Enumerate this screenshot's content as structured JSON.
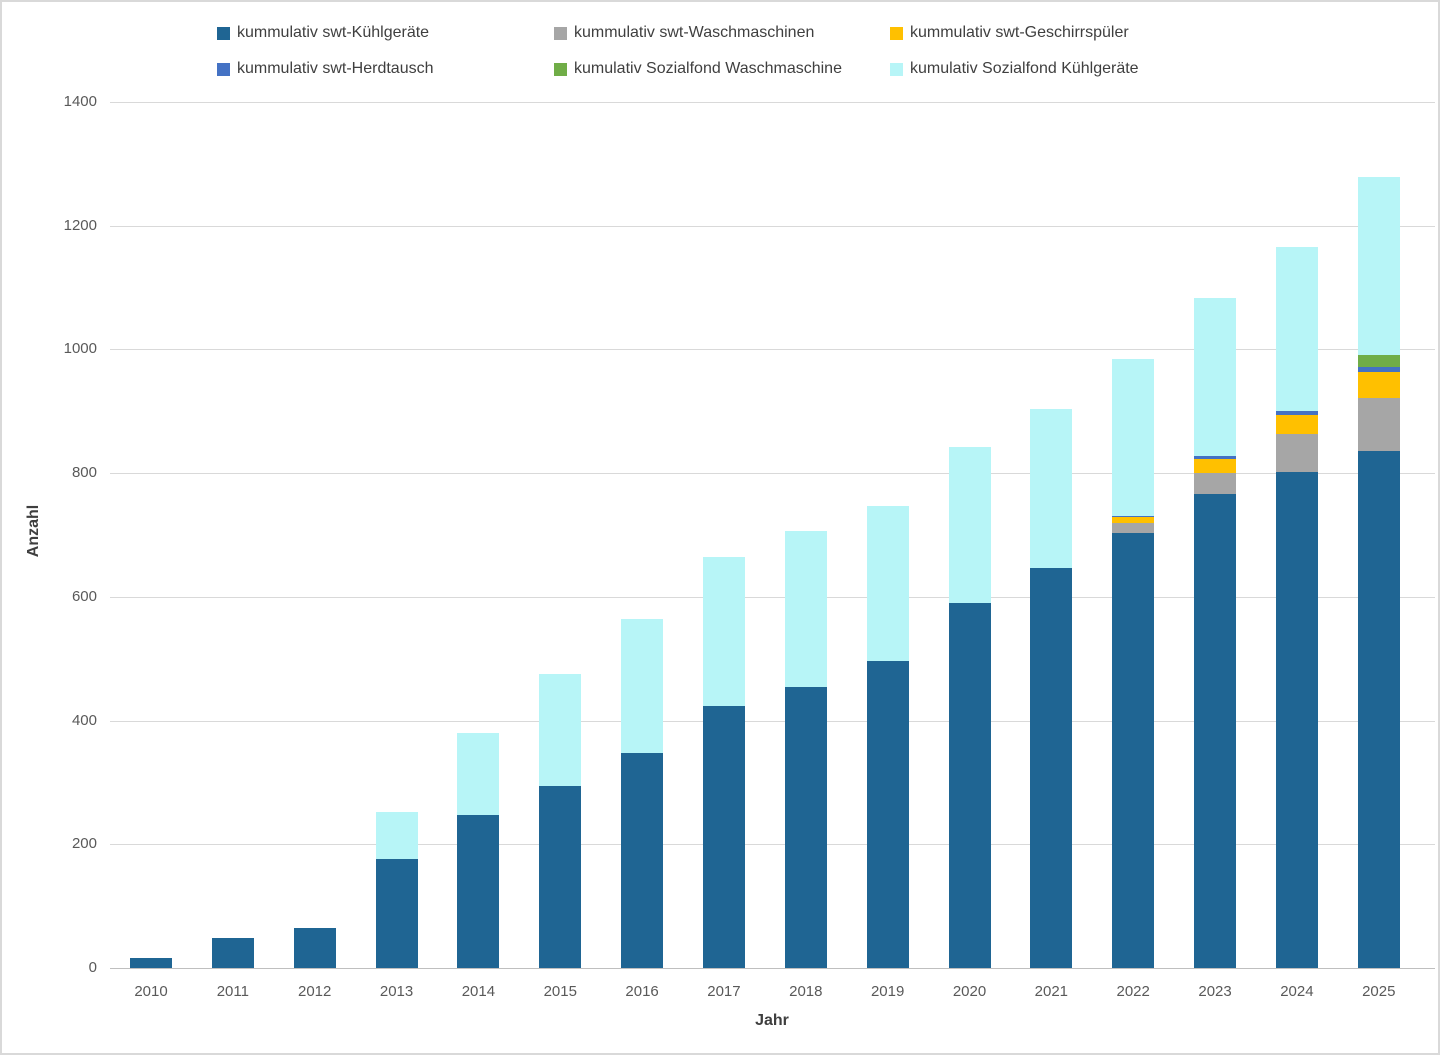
{
  "chart_data": {
    "type": "bar",
    "subtype": "stacked",
    "title": "",
    "xlabel": "Jahr",
    "ylabel": "Anzahl",
    "ylim": [
      0,
      1400
    ],
    "yticks": [
      0,
      200,
      400,
      600,
      800,
      1000,
      1200,
      1400
    ],
    "grid": true,
    "legend_position": "top",
    "categories": [
      "2010",
      "2011",
      "2012",
      "2013",
      "2014",
      "2015",
      "2016",
      "2017",
      "2018",
      "2019",
      "2020",
      "2021",
      "2022",
      "2023",
      "2024",
      "2025"
    ],
    "series": [
      {
        "name": "kummulativ swt-Kühlgeräte",
        "color": "#1F6593",
        "values": [
          16,
          48,
          65,
          177,
          248,
          295,
          348,
          424,
          455,
          497,
          590,
          647,
          704,
          767,
          802,
          835
        ]
      },
      {
        "name": "kummulativ swt-Waschmaschinen",
        "color": "#A6A6A6",
        "values": [
          0,
          0,
          0,
          0,
          0,
          0,
          0,
          0,
          0,
          0,
          0,
          0,
          15,
          34,
          61,
          87
        ]
      },
      {
        "name": "kummulativ swt-Geschirrspüler",
        "color": "#FFC000",
        "values": [
          0,
          0,
          0,
          0,
          0,
          0,
          0,
          0,
          0,
          0,
          0,
          0,
          10,
          22,
          31,
          42
        ]
      },
      {
        "name": "kummulativ swt-Herdtausch",
        "color": "#4472C4",
        "values": [
          0,
          0,
          0,
          0,
          0,
          0,
          0,
          0,
          0,
          0,
          0,
          0,
          2,
          5,
          6,
          7
        ]
      },
      {
        "name": "kumulativ Sozialfond Waschmaschine",
        "color": "#70AD47",
        "values": [
          0,
          0,
          0,
          0,
          0,
          0,
          0,
          0,
          0,
          0,
          0,
          0,
          0,
          0,
          0,
          20
        ]
      },
      {
        "name": "kumulativ Sozialfond Kühlgeräte",
        "color": "#B7F5F7",
        "values": [
          0,
          0,
          0,
          76,
          132,
          180,
          217,
          241,
          251,
          250,
          252,
          256,
          254,
          255,
          265,
          287
        ]
      }
    ],
    "legend_rows": [
      [
        0,
        1,
        2
      ],
      [
        3,
        4,
        5
      ]
    ]
  }
}
